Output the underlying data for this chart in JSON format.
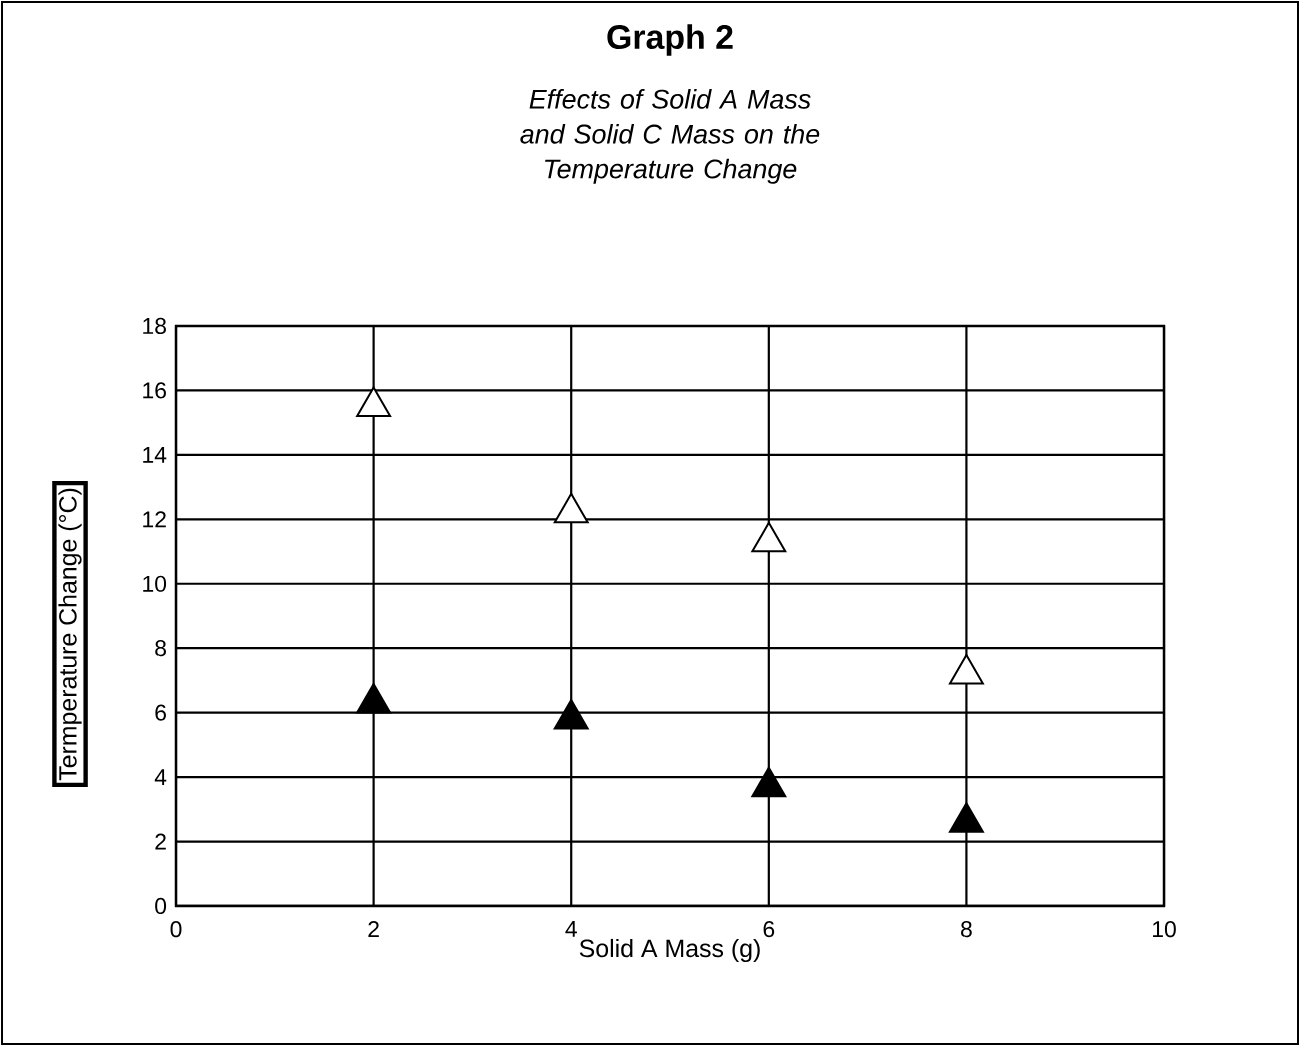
{
  "chart_data": {
    "type": "scatter",
    "title": "Graph 2",
    "subtitle": "Effects of Solid A Mass and Solid C Mass on the Temperature Change",
    "xlabel": "Solid A Mass (g)",
    "ylabel": "Termperature Change (°C)",
    "xlim": [
      0,
      10
    ],
    "ylim": [
      0,
      18
    ],
    "xticks": [
      0,
      2,
      4,
      6,
      8,
      10
    ],
    "yticks": [
      0,
      2,
      4,
      6,
      8,
      10,
      12,
      14,
      16,
      18
    ],
    "grid": true,
    "marker": "triangle",
    "series": [
      {
        "color": "#ffffff",
        "x": [
          2,
          4,
          6,
          8
        ],
        "values": [
          15.5,
          12.2,
          11.3,
          7.2
        ]
      },
      {
        "color": "#000000",
        "x": [
          2,
          4,
          6,
          8
        ],
        "values": [
          6.3,
          5.8,
          3.7,
          2.6
        ]
      }
    ]
  }
}
